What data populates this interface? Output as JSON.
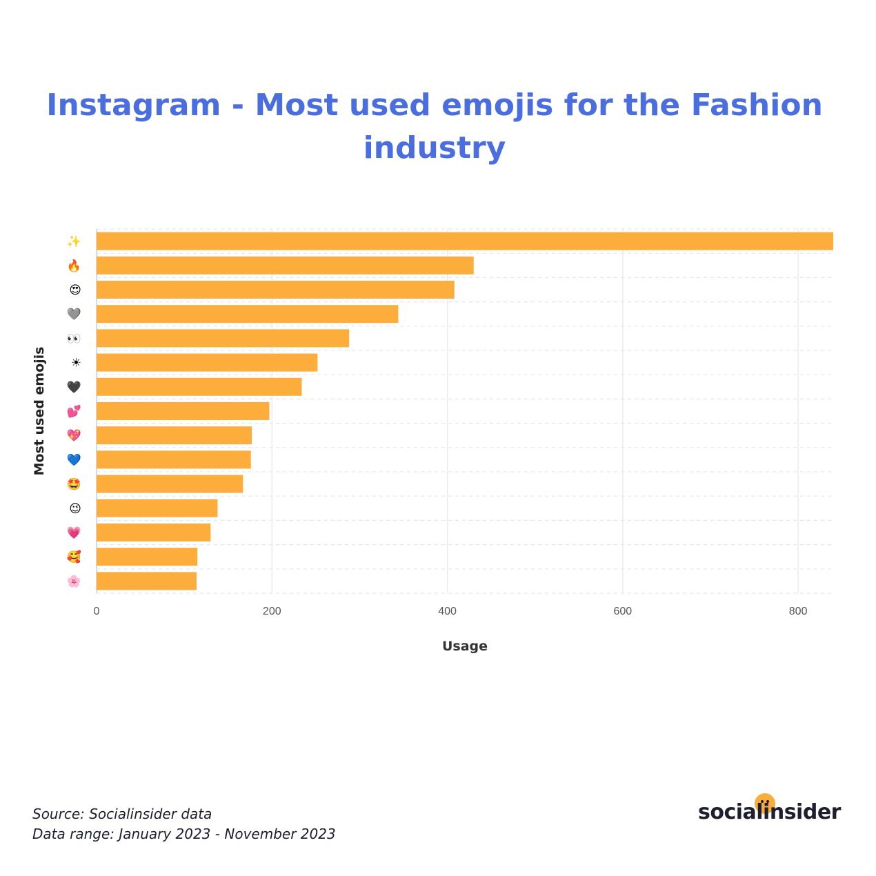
{
  "chart_data": {
    "type": "bar",
    "orientation": "horizontal",
    "title": "Instagram - Most used emojis for the Fashion industry",
    "xlabel": "Usage",
    "ylabel": "Most used emojis",
    "categories": [
      "✨",
      "🔥",
      "😍",
      "🩶",
      "👀",
      "☀",
      "🖤",
      "💕",
      "💖",
      "💙",
      "🤩",
      "😉",
      "💗",
      "🥰",
      "🌸"
    ],
    "values": [
      840,
      430,
      408,
      344,
      288,
      252,
      234,
      197,
      177,
      176,
      167,
      138,
      130,
      115,
      114
    ],
    "xlim": [
      0,
      840
    ],
    "xticks": [
      "0",
      "200",
      "400",
      "600",
      "800"
    ],
    "grid": true,
    "bar_color": "#fdad3b"
  },
  "footer": {
    "source": "Source: Socialinsider data",
    "range": "Data range: January 2023 - November 2023"
  },
  "logo": {
    "text": "socialinsider"
  },
  "colors": {
    "title": "#4a6ee0",
    "bar": "#fdad3b",
    "text_dark": "#1e1e2e"
  }
}
